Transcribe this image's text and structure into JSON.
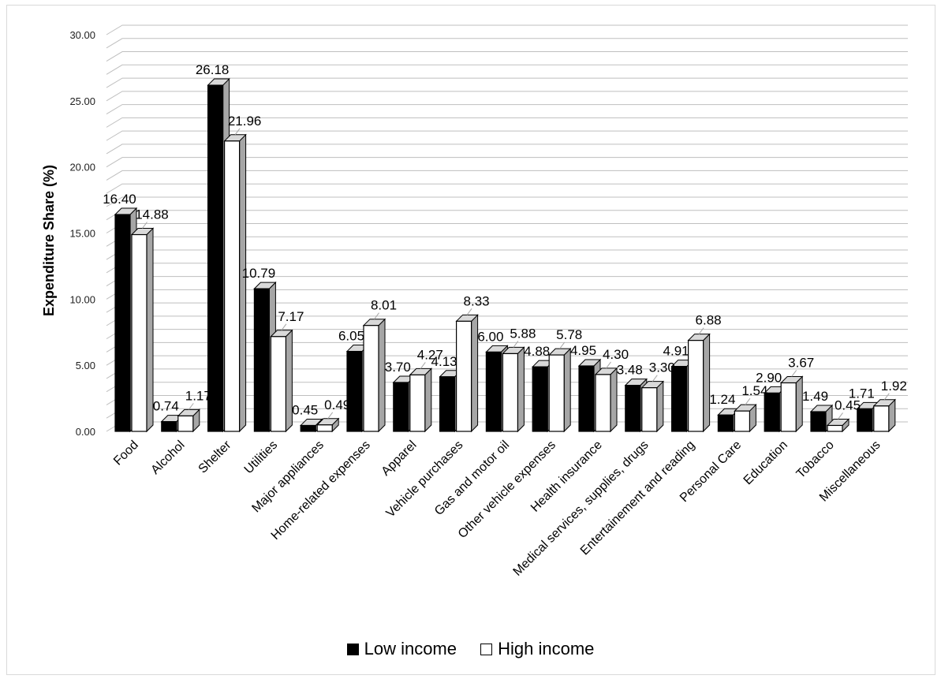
{
  "chart_data": {
    "type": "bar",
    "ylabel": "Expenditure Share (%)",
    "ylim": [
      0,
      30
    ],
    "yticks": [
      "0.00",
      "5.00",
      "10.00",
      "15.00",
      "20.00",
      "25.00",
      "30.00"
    ],
    "grid": true,
    "legend_position": "bottom",
    "categories": [
      "Food",
      "Alcohol",
      "Shelter",
      "Utilities",
      "Major appliances",
      "Home-related expenses",
      "Apparel",
      "Vehicle purchases",
      "Gas and motor oil",
      "Other vehicle expenses",
      "Health insurance",
      "Medical services, supplies, drugs",
      "Entertainement and reading",
      "Personal Care",
      "Education",
      "Tobacco",
      "Miscellaneous"
    ],
    "series": [
      {
        "name": "Low income",
        "color": "#000000",
        "values": [
          16.4,
          0.74,
          26.18,
          10.79,
          0.45,
          6.05,
          3.7,
          4.13,
          6.0,
          4.88,
          4.95,
          3.48,
          4.91,
          1.24,
          2.9,
          1.49,
          1.71
        ]
      },
      {
        "name": "High income",
        "color": "#ffffff",
        "values": [
          14.88,
          1.17,
          21.96,
          7.17,
          0.49,
          8.01,
          4.27,
          8.33,
          5.88,
          5.78,
          4.3,
          3.3,
          6.88,
          1.54,
          3.67,
          0.45,
          1.92
        ]
      }
    ]
  }
}
